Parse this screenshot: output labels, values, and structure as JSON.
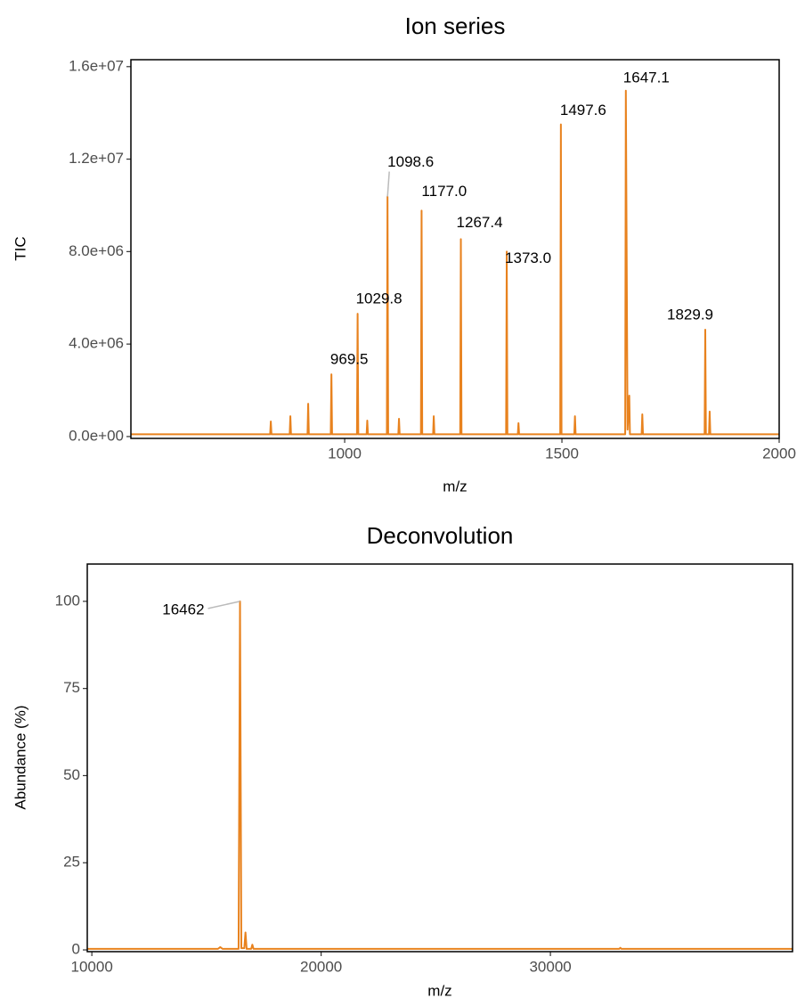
{
  "chart_data": [
    {
      "type": "line",
      "title": "Ion series",
      "xlabel": "m/z",
      "ylabel": "TIC",
      "color": "#e8821e",
      "x": [
        508,
        828.5,
        830,
        831.5,
        873.5,
        875,
        876.5,
        914.5,
        916,
        917.5,
        968,
        969.5,
        971,
        1028.3,
        1029.8,
        1031.3,
        1050.5,
        1052,
        1053.5,
        1097.1,
        1098.6,
        1100.1,
        1123.5,
        1125,
        1126.5,
        1175.5,
        1177,
        1178.5,
        1203.5,
        1205,
        1206.5,
        1265.9,
        1267.4,
        1268.9,
        1371.5,
        1373,
        1374.5,
        1398.5,
        1400,
        1401.5,
        1496.1,
        1497.6,
        1499.1,
        1528.5,
        1530,
        1531.5,
        1645.6,
        1647.1,
        1651,
        1655,
        1656.5,
        1683.5,
        1685,
        1686.5,
        1828.4,
        1829.9,
        1831.4,
        1838.5,
        1840,
        1841.5,
        2000
      ],
      "values": [
        100000,
        100000,
        650000,
        100000,
        100000,
        880000,
        100000,
        100000,
        1420000,
        100000,
        100000,
        2690000,
        100000,
        100000,
        5310000,
        100000,
        100000,
        690000,
        100000,
        100000,
        10380000,
        100000,
        100000,
        770000,
        100000,
        100000,
        9770000,
        100000,
        100000,
        880000,
        100000,
        100000,
        8540000,
        100000,
        100000,
        8000000,
        100000,
        100000,
        580000,
        100000,
        100000,
        13500000,
        100000,
        100000,
        880000,
        100000,
        100000,
        14960000,
        300000,
        1770000,
        100000,
        100000,
        960000,
        100000,
        100000,
        4620000,
        100000,
        100000,
        1080000,
        100000,
        100000
      ],
      "xlim": [
        508,
        2000
      ],
      "xticks": [
        1000,
        1500,
        2000
      ],
      "ylim": [
        -80000,
        16300000
      ],
      "yticks": [
        {
          "value": 0,
          "label": "0.0e+00"
        },
        {
          "value": 4000000,
          "label": "4.0e+06"
        },
        {
          "value": 8000000,
          "label": "8.0e+06"
        },
        {
          "value": 12000000,
          "label": "1.2e+07"
        },
        {
          "value": 16000000,
          "label": "1.6e+07"
        }
      ],
      "annotations": [
        {
          "x": 969.5,
          "y": 2690000,
          "label": "969.5"
        },
        {
          "x": 1029.8,
          "y": 5310000,
          "label": "1029.8"
        },
        {
          "x": 1098.6,
          "y": 10380000,
          "label": "1098.6"
        },
        {
          "x": 1177.0,
          "y": 9770000,
          "label": "1177.0"
        },
        {
          "x": 1267.4,
          "y": 8540000,
          "label": "1267.4"
        },
        {
          "x": 1373.0,
          "y": 8000000,
          "label": "1373.0"
        },
        {
          "x": 1497.6,
          "y": 13500000,
          "label": "1497.6"
        },
        {
          "x": 1647.1,
          "y": 14960000,
          "label": "1647.1"
        },
        {
          "x": 1829.9,
          "y": 4620000,
          "label": "1829.9"
        }
      ]
    },
    {
      "type": "line",
      "title": "Deconvolution",
      "xlabel": "m/z",
      "ylabel": "Abundance (%)",
      "color": "#e8821e",
      "x": [
        9800,
        15500,
        15600,
        15700,
        16400,
        16462,
        16520,
        16650,
        16700,
        16750,
        16950,
        17000,
        17050,
        33000,
        33050,
        33100,
        40560
      ],
      "values": [
        0.3,
        0.3,
        0.8,
        0.3,
        0.3,
        100,
        0.5,
        0.5,
        5,
        0.3,
        0.3,
        1.5,
        0.3,
        0.3,
        0.6,
        0.3,
        0.3
      ],
      "xlim": [
        9800,
        40560
      ],
      "xticks": [
        10000,
        20000,
        30000
      ],
      "ylim": [
        -0.5,
        110.7
      ],
      "yticks": [
        0,
        25,
        50,
        75,
        100
      ],
      "annotations": [
        {
          "x": 16462,
          "y": 100,
          "label": "16462"
        }
      ]
    }
  ]
}
